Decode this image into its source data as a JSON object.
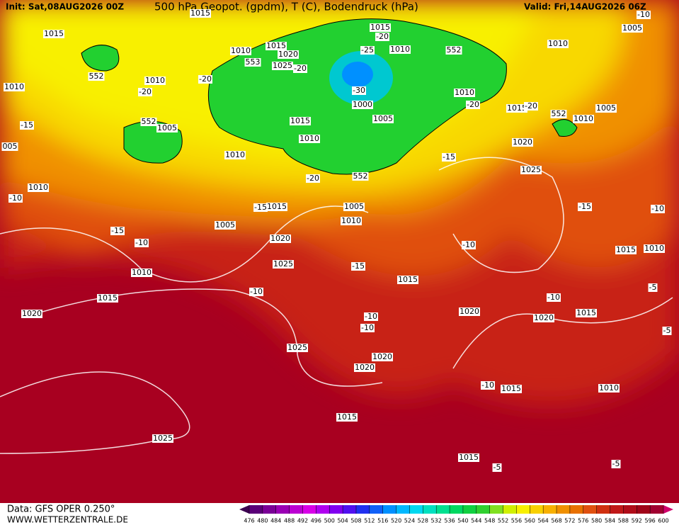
{
  "header": {
    "init": "Init: Sat,08AUG2026 00Z",
    "title": "500 hPa Geopot. (gpdm), T (C), Bodendruck (hPa)",
    "valid": "Valid: Fri,14AUG2026 06Z"
  },
  "footer": {
    "data": "Data: GFS OPER 0.250°",
    "site": "WWW.WETTERZENTRALE.DE"
  },
  "colorbar": {
    "ticks": [
      476,
      480,
      484,
      488,
      492,
      496,
      500,
      504,
      508,
      512,
      516,
      520,
      524,
      528,
      532,
      536,
      540,
      544,
      548,
      552,
      556,
      560,
      564,
      568,
      572,
      576,
      580,
      584,
      588,
      592,
      596,
      600
    ],
    "colors": [
      "#3c0050",
      "#5a0078",
      "#7a0096",
      "#9a00b4",
      "#bb00d2",
      "#d800e8",
      "#b000f0",
      "#8000f0",
      "#5010f0",
      "#2030f0",
      "#1060f8",
      "#0090ff",
      "#00b8ff",
      "#00d8f0",
      "#00e0c0",
      "#00e090",
      "#00d860",
      "#10d040",
      "#30d030",
      "#80e020",
      "#d0f000",
      "#f8f000",
      "#f8d000",
      "#f8b000",
      "#f09000",
      "#e87000",
      "#e05010",
      "#d03010",
      "#c01818",
      "#b00c18",
      "#a00418",
      "#a00030",
      "#d0006a"
    ]
  },
  "map_labels": [
    "1015",
    "1015",
    "1010",
    "1015",
    "1020",
    "553",
    "1025",
    "-20",
    "552",
    "1010",
    "-20",
    "-20",
    "1010",
    "-15",
    "552",
    "1005",
    "1015",
    "1010",
    "1010",
    "005",
    "1010",
    "-10",
    "-20",
    "552",
    "1015",
    "-20",
    "-25",
    "1010",
    "-30",
    "1000",
    "1005",
    "552",
    "1010",
    "-20",
    "1015",
    "-20",
    "552",
    "1010",
    "1005",
    "1005",
    "1010",
    "-10",
    "1020",
    "-15",
    "1025",
    "-15",
    "-10",
    "-15",
    "1015",
    "1005",
    "1010",
    "1005",
    "-15",
    "-10",
    "1020",
    "-10",
    "1015",
    "1010",
    "1025",
    "-15",
    "1010",
    "1015",
    "-10",
    "1015",
    "-10",
    "-5",
    "1020",
    "1020",
    "1015",
    "-10",
    "-10",
    "1020",
    "1025",
    "1020",
    "1020",
    "-10",
    "1015",
    "1010",
    "1015",
    "1025",
    "1015",
    "-5",
    "-5",
    "-5"
  ]
}
